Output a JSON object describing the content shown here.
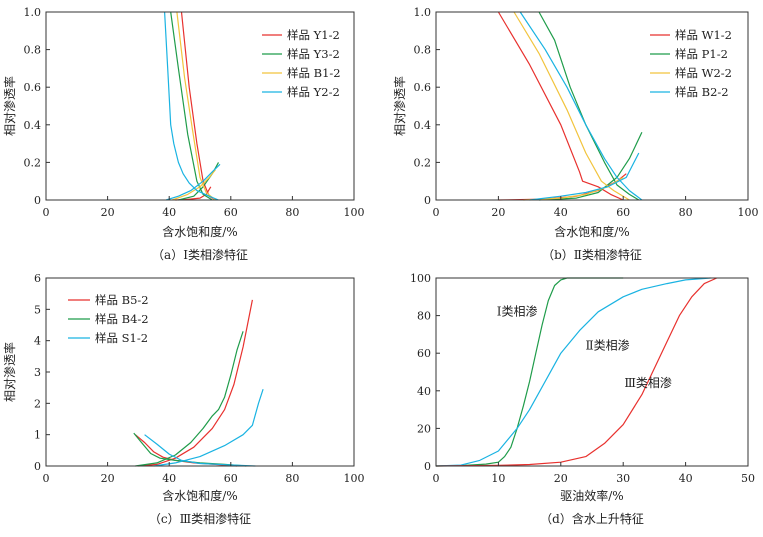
{
  "chart_data": [
    {
      "id": "a",
      "type": "line",
      "caption": "（a）Ⅰ类相渗特征",
      "xlabel": "含水饱和度/%",
      "ylabel": "相对渗透率",
      "xlim": [
        0,
        100
      ],
      "ylim": [
        0,
        1.0
      ],
      "xticks": [
        0,
        20,
        40,
        60,
        80,
        100
      ],
      "yticks": [
        0,
        0.2,
        0.4,
        0.6,
        0.8,
        1.0
      ],
      "xtick_labels": [
        "0",
        "20",
        "40",
        "60",
        "80",
        "100"
      ],
      "ytick_labels": [
        "0",
        "0.2",
        "0.4",
        "0.6",
        "0.8",
        "1.0"
      ],
      "legend_position": "top-right",
      "series": [
        {
          "name": "样品 Y1-2",
          "color": "#e8312e",
          "kro": [
            [
              44,
              1.0
            ],
            [
              46.5,
              0.6
            ],
            [
              49,
              0.3
            ],
            [
              51,
              0.1
            ],
            [
              53,
              0.02
            ],
            [
              55,
              0.0
            ]
          ],
          "krw": [
            [
              42,
              0.0
            ],
            [
              46,
              0.003
            ],
            [
              50,
              0.01
            ],
            [
              52,
              0.03
            ],
            [
              53.5,
              0.07
            ]
          ]
        },
        {
          "name": "样品 Y3-2",
          "color": "#1f9c4a",
          "kro": [
            [
              40.5,
              1.0
            ],
            [
              43,
              0.7
            ],
            [
              46,
              0.35
            ],
            [
              49,
              0.1
            ],
            [
              51,
              0.03
            ],
            [
              54,
              0.0
            ]
          ],
          "krw": [
            [
              43,
              0.0
            ],
            [
              48,
              0.02
            ],
            [
              51,
              0.07
            ],
            [
              54,
              0.14
            ],
            [
              56,
              0.2
            ]
          ]
        },
        {
          "name": "样品 B1-2",
          "color": "#f2c43d",
          "kro": [
            [
              42.5,
              1.0
            ],
            [
              45,
              0.65
            ],
            [
              47.5,
              0.38
            ],
            [
              50,
              0.12
            ],
            [
              52,
              0.04
            ],
            [
              55,
              0.0
            ]
          ],
          "krw": [
            [
              41,
              0.0
            ],
            [
              46,
              0.03
            ],
            [
              50,
              0.07
            ],
            [
              53,
              0.12
            ],
            [
              55,
              0.16
            ]
          ]
        },
        {
          "name": "样品 Y2-2",
          "color": "#1ab3e2",
          "kro": [
            [
              38.5,
              1.0
            ],
            [
              39.5,
              0.7
            ],
            [
              40.5,
              0.4
            ],
            [
              41.5,
              0.3
            ],
            [
              43,
              0.2
            ],
            [
              44.5,
              0.14
            ],
            [
              46.5,
              0.09
            ],
            [
              49,
              0.05
            ],
            [
              53,
              0.02
            ],
            [
              56,
              0.0
            ]
          ],
          "krw": [
            [
              39,
              0.0
            ],
            [
              43,
              0.02
            ],
            [
              47,
              0.05
            ],
            [
              51,
              0.1
            ],
            [
              54,
              0.15
            ],
            [
              56.5,
              0.19
            ]
          ]
        }
      ]
    },
    {
      "id": "b",
      "type": "line",
      "caption": "（b）Ⅱ类相渗特征",
      "xlabel": "含水饱和度/%",
      "ylabel": "相对渗透率",
      "xlim": [
        0,
        100
      ],
      "ylim": [
        0,
        1.0
      ],
      "xticks": [
        0,
        20,
        40,
        60,
        80,
        100
      ],
      "yticks": [
        0,
        0.2,
        0.4,
        0.6,
        0.8,
        1.0
      ],
      "xtick_labels": [
        "0",
        "20",
        "40",
        "60",
        "80",
        "100"
      ],
      "ytick_labels": [
        "0",
        "0.2",
        "0.4",
        "0.6",
        "0.8",
        "1.0"
      ],
      "legend_position": "top-right",
      "series": [
        {
          "name": "样品 W1-2",
          "color": "#e8312e",
          "kro": [
            [
              20,
              1.0
            ],
            [
              30,
              0.72
            ],
            [
              40,
              0.4
            ],
            [
              46,
              0.15
            ],
            [
              47,
              0.1
            ],
            [
              52,
              0.07
            ],
            [
              56,
              0.03
            ],
            [
              60,
              0.0
            ]
          ],
          "krw": [
            [
              20,
              0.0
            ],
            [
              35,
              0.005
            ],
            [
              45,
              0.02
            ],
            [
              52,
              0.05
            ],
            [
              58,
              0.1
            ],
            [
              61,
              0.14
            ]
          ]
        },
        {
          "name": "样品 P1-2",
          "color": "#1f9c4a",
          "kro": [
            [
              33,
              1.0
            ],
            [
              38,
              0.85
            ],
            [
              43,
              0.6
            ],
            [
              48,
              0.4
            ],
            [
              54,
              0.2
            ],
            [
              58,
              0.08
            ],
            [
              62,
              0.03
            ],
            [
              65,
              0.0
            ]
          ],
          "krw": [
            [
              33,
              0.0
            ],
            [
              45,
              0.01
            ],
            [
              52,
              0.04
            ],
            [
              58,
              0.12
            ],
            [
              62,
              0.22
            ],
            [
              66,
              0.36
            ]
          ]
        },
        {
          "name": "样品 W2-2",
          "color": "#f2c43d",
          "kro": [
            [
              25,
              1.0
            ],
            [
              33,
              0.78
            ],
            [
              42,
              0.48
            ],
            [
              48,
              0.25
            ],
            [
              53,
              0.1
            ],
            [
              57,
              0.05
            ],
            [
              62,
              0.0
            ]
          ],
          "krw": [
            [
              28,
              0.0
            ],
            [
              40,
              0.01
            ],
            [
              48,
              0.03
            ],
            [
              55,
              0.07
            ],
            [
              60,
              0.12
            ]
          ]
        },
        {
          "name": "样品 B2-2",
          "color": "#1ab3e2",
          "kro": [
            [
              27,
              1.0
            ],
            [
              35,
              0.8
            ],
            [
              42,
              0.6
            ],
            [
              48,
              0.4
            ],
            [
              54,
              0.22
            ],
            [
              58,
              0.12
            ],
            [
              62,
              0.05
            ],
            [
              66,
              0.0
            ]
          ],
          "krw": [
            [
              30,
              0.0
            ],
            [
              40,
              0.02
            ],
            [
              48,
              0.04
            ],
            [
              55,
              0.07
            ],
            [
              61,
              0.12
            ],
            [
              65,
              0.25
            ]
          ]
        }
      ]
    },
    {
      "id": "c",
      "type": "line",
      "caption": "（c）Ⅲ类相渗特征",
      "xlabel": "含水饱和度/%",
      "ylabel": "相对渗透率",
      "xlim": [
        0,
        100
      ],
      "ylim": [
        0,
        6
      ],
      "xticks": [
        0,
        20,
        40,
        60,
        80,
        100
      ],
      "yticks": [
        0,
        1,
        2,
        3,
        4,
        5,
        6
      ],
      "xtick_labels": [
        "0",
        "20",
        "40",
        "60",
        "80",
        "100"
      ],
      "ytick_labels": [
        "0",
        "1",
        "2",
        "3",
        "4",
        "5",
        "6"
      ],
      "legend_position": "top-left",
      "series": [
        {
          "name": "样品 B5-2",
          "color": "#e8312e",
          "kro": [
            [
              29,
              1.0
            ],
            [
              32,
              0.75
            ],
            [
              35,
              0.45
            ],
            [
              38,
              0.28
            ],
            [
              42,
              0.18
            ],
            [
              48,
              0.1
            ],
            [
              55,
              0.05
            ],
            [
              62,
              0.0
            ]
          ],
          "krw": [
            [
              30,
              0.0
            ],
            [
              36,
              0.05
            ],
            [
              42,
              0.25
            ],
            [
              48,
              0.6
            ],
            [
              54,
              1.2
            ],
            [
              58,
              1.8
            ],
            [
              61,
              2.6
            ],
            [
              64,
              3.8
            ],
            [
              67,
              5.3
            ]
          ]
        },
        {
          "name": "样品 B4-2",
          "color": "#1f9c4a",
          "kro": [
            [
              28.5,
              1.05
            ],
            [
              31,
              0.75
            ],
            [
              34,
              0.4
            ],
            [
              37,
              0.25
            ],
            [
              42,
              0.18
            ],
            [
              50,
              0.1
            ],
            [
              58,
              0.05
            ],
            [
              65,
              0.0
            ]
          ],
          "krw": [
            [
              29,
              0.0
            ],
            [
              36,
              0.1
            ],
            [
              42,
              0.35
            ],
            [
              47,
              0.75
            ],
            [
              51,
              1.2
            ],
            [
              54,
              1.6
            ],
            [
              56,
              1.8
            ],
            [
              58,
              2.2
            ],
            [
              60,
              2.9
            ],
            [
              62,
              3.7
            ],
            [
              64,
              4.3
            ]
          ]
        },
        {
          "name": "样品 S1-2",
          "color": "#1ab3e2",
          "kro": [
            [
              32,
              1.0
            ],
            [
              36,
              0.7
            ],
            [
              40,
              0.38
            ],
            [
              44,
              0.18
            ],
            [
              50,
              0.08
            ],
            [
              58,
              0.04
            ],
            [
              68,
              0.0
            ]
          ],
          "krw": [
            [
              35,
              0.0
            ],
            [
              42,
              0.1
            ],
            [
              50,
              0.3
            ],
            [
              58,
              0.65
            ],
            [
              64,
              1.0
            ],
            [
              67,
              1.3
            ],
            [
              69,
              2.0
            ],
            [
              70.5,
              2.45
            ]
          ]
        }
      ]
    },
    {
      "id": "d",
      "type": "line",
      "caption": "（d）含水上升特征",
      "xlabel": "驱油效率/%",
      "ylabel": "",
      "xlim": [
        0,
        50
      ],
      "ylim": [
        0,
        100
      ],
      "xticks": [
        0,
        10,
        20,
        30,
        40,
        50
      ],
      "yticks": [
        0,
        20,
        40,
        60,
        80,
        100
      ],
      "xtick_labels": [
        "0",
        "10",
        "20",
        "30",
        "40",
        "50"
      ],
      "ytick_labels": [
        "0",
        "20",
        "40",
        "60",
        "80",
        "100"
      ],
      "series": [
        {
          "name": "Ⅰ类相渗",
          "color": "#1f9c4a",
          "points": [
            [
              0,
              0
            ],
            [
              4,
              0.2
            ],
            [
              8,
              1
            ],
            [
              10,
              2
            ],
            [
              11,
              5
            ],
            [
              12,
              10
            ],
            [
              13,
              20
            ],
            [
              14,
              32
            ],
            [
              15,
              45
            ],
            [
              16,
              60
            ],
            [
              17,
              75
            ],
            [
              18,
              88
            ],
            [
              19,
              96
            ],
            [
              20,
              99
            ],
            [
              21,
              100
            ],
            [
              30,
              100
            ]
          ]
        },
        {
          "name": "Ⅱ类相渗",
          "color": "#1ab3e2",
          "points": [
            [
              0,
              0
            ],
            [
              4,
              0.5
            ],
            [
              7,
              3
            ],
            [
              10,
              8
            ],
            [
              13,
              20
            ],
            [
              15,
              30
            ],
            [
              18,
              48
            ],
            [
              20,
              60
            ],
            [
              23,
              72
            ],
            [
              26,
              82
            ],
            [
              30,
              90
            ],
            [
              33,
              94
            ],
            [
              37,
              97
            ],
            [
              40,
              99
            ],
            [
              44,
              100
            ]
          ]
        },
        {
          "name": "Ⅲ类相渗",
          "color": "#e8312e",
          "points": [
            [
              0,
              0
            ],
            [
              10,
              0.3
            ],
            [
              15,
              0.8
            ],
            [
              20,
              2
            ],
            [
              24,
              5
            ],
            [
              27,
              12
            ],
            [
              30,
              22
            ],
            [
              33,
              38
            ],
            [
              35,
              52
            ],
            [
              37,
              66
            ],
            [
              39,
              80
            ],
            [
              41,
              90
            ],
            [
              43,
              97
            ],
            [
              45,
              100
            ]
          ]
        }
      ],
      "annotations": [
        {
          "text": "Ⅰ类相渗",
          "x": 13,
          "y": 80
        },
        {
          "text": "Ⅱ类相渗",
          "x": 27.5,
          "y": 62
        },
        {
          "text": "Ⅲ类相渗",
          "x": 34,
          "y": 42
        }
      ]
    }
  ]
}
